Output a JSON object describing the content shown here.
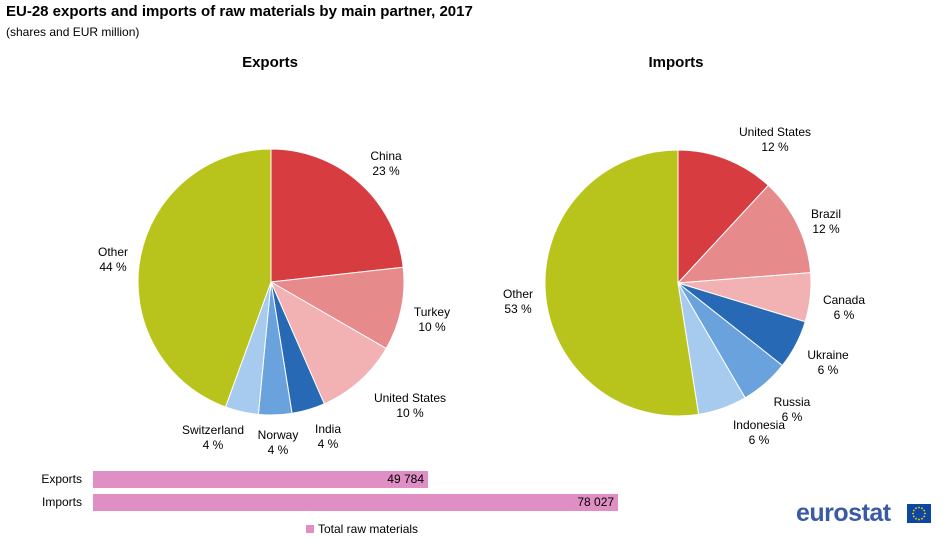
{
  "title": "EU-28 exports and imports of raw materials by main partner, 2017",
  "subtitle": "(shares and EUR million)",
  "logo": "eurostat",
  "chart_data": [
    {
      "type": "pie",
      "title": "Exports",
      "slices": [
        {
          "label": "China",
          "value": 23,
          "display": "23 %",
          "color": "#d73c41"
        },
        {
          "label": "Turkey",
          "value": 10,
          "display": "10 %",
          "color": "#e78a8c"
        },
        {
          "label": "United States",
          "value": 10,
          "display": "10 %",
          "color": "#f2b1b3"
        },
        {
          "label": "India",
          "value": 4,
          "display": "4 %",
          "color": "#2869b5"
        },
        {
          "label": "Norway",
          "value": 4,
          "display": "4 %",
          "color": "#6aa2dd"
        },
        {
          "label": "Switzerland",
          "value": 4,
          "display": "4 %",
          "color": "#a6cbef"
        },
        {
          "label": "Other",
          "value": 44,
          "display": "44 %",
          "color": "#b8c41c"
        }
      ]
    },
    {
      "type": "pie",
      "title": "Imports",
      "slices": [
        {
          "label": "United States",
          "value": 12,
          "display": "12 %",
          "color": "#d73c41"
        },
        {
          "label": "Brazil",
          "value": 12,
          "display": "12 %",
          "color": "#e78a8c"
        },
        {
          "label": "Canada",
          "value": 6,
          "display": "6 %",
          "color": "#f2b1b3"
        },
        {
          "label": "Ukraine",
          "value": 6,
          "display": "6 %",
          "color": "#2869b5"
        },
        {
          "label": "Russia",
          "value": 6,
          "display": "6 %",
          "color": "#6aa2dd"
        },
        {
          "label": "Indonesia",
          "value": 6,
          "display": "6 %",
          "color": "#a6cbef"
        },
        {
          "label": "Other",
          "value": 53,
          "display": "53 %",
          "color": "#b8c41c"
        }
      ]
    },
    {
      "type": "bar",
      "orientation": "horizontal",
      "categories": [
        "Exports",
        "Imports"
      ],
      "series": [
        {
          "name": "Total raw materials",
          "values": [
            49784,
            78027
          ],
          "labels": [
            "49 784",
            "78 027"
          ],
          "color": "#df8fc4"
        }
      ],
      "xlim": [
        0,
        80000
      ],
      "legend": "bottom"
    }
  ]
}
